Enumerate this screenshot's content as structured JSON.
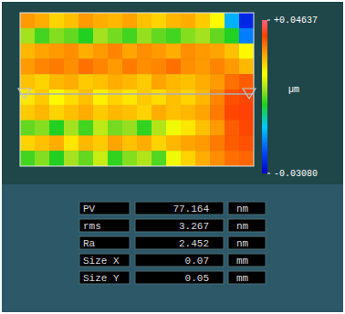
{
  "chart_data": {
    "type": "heatmap",
    "cells": [
      [
        0.03,
        0.028,
        0.024,
        0.026,
        0.03,
        0.028,
        0.027,
        0.029,
        0.026,
        0.024,
        0.027,
        0.028,
        0.025,
        0.02,
        -0.01,
        -0.025
      ],
      [
        0.012,
        0.006,
        0.01,
        0.008,
        0.004,
        0.012,
        0.009,
        0.006,
        0.011,
        0.008,
        0.006,
        0.01,
        0.012,
        0.008,
        0.004,
        -0.015
      ],
      [
        0.027,
        0.029,
        0.03,
        0.031,
        0.028,
        0.03,
        0.032,
        0.029,
        0.031,
        0.03,
        0.028,
        0.031,
        0.03,
        0.029,
        0.026,
        0.02
      ],
      [
        0.03,
        0.032,
        0.033,
        0.031,
        0.034,
        0.032,
        0.03,
        0.033,
        0.031,
        0.032,
        0.034,
        0.031,
        0.03,
        0.032,
        0.03,
        0.027
      ],
      [
        0.026,
        0.024,
        0.027,
        0.028,
        0.025,
        0.026,
        0.028,
        0.027,
        0.025,
        0.029,
        0.027,
        0.026,
        0.028,
        0.03,
        0.034,
        0.036
      ],
      [
        0.022,
        0.025,
        0.02,
        0.023,
        0.026,
        0.021,
        0.024,
        0.022,
        0.025,
        0.023,
        0.026,
        0.024,
        0.027,
        0.032,
        0.037,
        0.038
      ],
      [
        0.025,
        0.027,
        0.024,
        0.026,
        0.028,
        0.025,
        0.027,
        0.026,
        0.024,
        0.028,
        0.026,
        0.027,
        0.029,
        0.033,
        0.038,
        0.039
      ],
      [
        0.008,
        0.01,
        0.004,
        0.012,
        0.006,
        0.014,
        0.009,
        0.011,
        0.005,
        0.013,
        0.018,
        0.022,
        0.026,
        0.03,
        0.036,
        0.038
      ],
      [
        0.024,
        0.026,
        0.028,
        0.022,
        0.027,
        0.025,
        0.029,
        0.026,
        0.028,
        0.024,
        0.027,
        0.029,
        0.03,
        0.033,
        0.036,
        0.037
      ],
      [
        0.006,
        0.01,
        0.004,
        0.012,
        0.008,
        0.015,
        0.005,
        0.01,
        0.013,
        0.007,
        0.018,
        0.024,
        0.028,
        0.031,
        0.034,
        0.035
      ]
    ],
    "colorbar": {
      "range": [
        -0.0308,
        0.04637
      ],
      "ticks": [
        {
          "value": 0.04637,
          "label": "+0.04637"
        },
        {
          "value": -0.0308,
          "label": "-0.03080"
        }
      ],
      "label": "µm"
    }
  },
  "table": {
    "rows": [
      [
        "PV",
        77.164,
        "nm"
      ],
      [
        "rms",
        3.267,
        "nm"
      ],
      [
        "Ra",
        2.452,
        "nm"
      ],
      [
        "Size X",
        0.07,
        "mm"
      ],
      [
        "Size Y",
        0.05,
        "mm"
      ]
    ]
  }
}
